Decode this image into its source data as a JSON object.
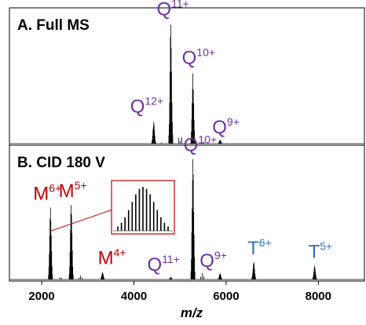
{
  "chart_data": {
    "type": "line",
    "xlabel": "m/z",
    "xlim": [
      1300,
      9000
    ],
    "xticks": [
      2000,
      4000,
      6000,
      8000
    ],
    "colors": {
      "Q": "#7030a0",
      "M": "#c00000",
      "T": "#2e75b6",
      "trace": "#000000",
      "inset_border": "#c00000"
    },
    "panels": [
      {
        "id": "A",
        "title": "A. Full MS",
        "peaks": [
          {
            "mz": 4430,
            "rel": 0.17
          },
          {
            "mz": 4800,
            "rel": 0.93
          },
          {
            "mz": 5280,
            "rel": 0.55
          },
          {
            "mz": 5870,
            "rel": 0.03
          }
        ],
        "labels": [
          {
            "species": "Q",
            "charge": "12+",
            "mz": 4430,
            "color": "Q"
          },
          {
            "species": "Q",
            "charge": "11+",
            "mz": 4800,
            "color": "Q"
          },
          {
            "species": "Q",
            "charge": "10+",
            "mz": 5280,
            "color": "Q"
          },
          {
            "species": "Q",
            "charge": "9+",
            "mz": 5870,
            "color": "Q"
          }
        ]
      },
      {
        "id": "B",
        "title": "B. CID 180 V",
        "peaks": [
          {
            "mz": 2190,
            "rel": 0.58
          },
          {
            "mz": 2640,
            "rel": 0.6
          },
          {
            "mz": 3320,
            "rel": 0.06
          },
          {
            "mz": 4800,
            "rel": 0.02
          },
          {
            "mz": 5280,
            "rel": 0.97
          },
          {
            "mz": 5870,
            "rel": 0.05
          },
          {
            "mz": 6600,
            "rel": 0.14
          },
          {
            "mz": 7920,
            "rel": 0.11
          }
        ],
        "labels": [
          {
            "species": "M",
            "charge": "6+",
            "mz": 2190,
            "color": "M"
          },
          {
            "species": "M",
            "charge": "5+",
            "mz": 2640,
            "color": "M"
          },
          {
            "species": "M",
            "charge": "4+",
            "mz": 3320,
            "color": "M"
          },
          {
            "species": "Q",
            "charge": "11+",
            "mz": 4800,
            "color": "Q"
          },
          {
            "species": "Q",
            "charge": "10+",
            "mz": 5280,
            "color": "Q"
          },
          {
            "species": "Q",
            "charge": "9+",
            "mz": 5870,
            "color": "Q"
          },
          {
            "species": "T",
            "charge": "6+",
            "mz": 6600,
            "color": "T"
          },
          {
            "species": "T",
            "charge": "5+",
            "mz": 7920,
            "color": "T"
          }
        ],
        "inset": {
          "zoom_of_peak_mz": 2190
        }
      }
    ]
  }
}
